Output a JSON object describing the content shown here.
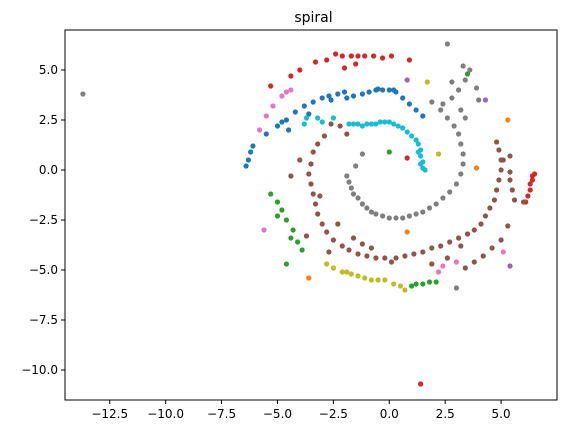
{
  "chart_data": {
    "type": "scatter",
    "title": "spiral",
    "xlabel": "",
    "ylabel": "",
    "xlim": [
      -14.5,
      7.5
    ],
    "ylim": [
      -11.5,
      7.0
    ],
    "xticks": [
      -12.5,
      -10.0,
      -7.5,
      -5.0,
      -2.5,
      0.0,
      2.5,
      5.0
    ],
    "xtick_labels": [
      "−12.5",
      "−10.0",
      "−7.5",
      "−5.0",
      "−2.5",
      "0.0",
      "2.5",
      "5.0"
    ],
    "yticks": [
      5.0,
      2.5,
      0.0,
      -2.5,
      -5.0,
      -7.5,
      -10.0
    ],
    "ytick_labels": [
      "5.0",
      "2.5",
      "0.0",
      "−2.5",
      "−5.0",
      "−7.5",
      "−10.0"
    ],
    "grid": false,
    "series": [
      {
        "color": "#1f77b4",
        "points": [
          [
            -6.4,
            0.2
          ],
          [
            -6.3,
            0.5
          ],
          [
            -6.2,
            0.9
          ],
          [
            -6.1,
            1.2
          ],
          [
            -5.5,
            1.8
          ],
          [
            -5.0,
            2.2
          ],
          [
            -4.6,
            2.5
          ],
          [
            -4.2,
            2.9
          ],
          [
            -3.8,
            3.2
          ],
          [
            -3.4,
            3.4
          ],
          [
            -3.0,
            3.6
          ],
          [
            -2.7,
            3.7
          ],
          [
            -2.3,
            3.8
          ],
          [
            -2.0,
            3.9
          ],
          [
            -1.6,
            3.7
          ],
          [
            -1.2,
            3.8
          ],
          [
            -0.9,
            3.9
          ],
          [
            -0.6,
            4.0
          ],
          [
            -0.3,
            4.0
          ],
          [
            0.0,
            4.0
          ],
          [
            0.3,
            3.9
          ],
          [
            0.6,
            3.6
          ],
          [
            0.9,
            3.3
          ],
          [
            1.2,
            3.0
          ],
          [
            1.5,
            2.7
          ],
          [
            -4.8,
            2.4
          ],
          [
            -3.6,
            2.8
          ],
          [
            -2.6,
            3.5
          ],
          [
            -1.9,
            3.6
          ],
          [
            -0.5,
            4.05
          ],
          [
            0.2,
            4.0
          ],
          [
            -4.5,
            2.0
          ]
        ]
      },
      {
        "color": "#ff7f0e",
        "points": [
          [
            5.3,
            2.5
          ],
          [
            3.9,
            0.1
          ],
          [
            0.8,
            -3.1
          ],
          [
            -3.6,
            -5.4
          ]
        ]
      },
      {
        "color": "#2ca02c",
        "points": [
          [
            -5.3,
            -1.2
          ],
          [
            -5.0,
            -1.6
          ],
          [
            -4.8,
            -2.0
          ],
          [
            -4.6,
            -2.5
          ],
          [
            -4.3,
            -3.0
          ],
          [
            -4.1,
            -3.6
          ],
          [
            -3.9,
            -4.0
          ],
          [
            -4.6,
            -4.7
          ],
          [
            -5.0,
            -2.3
          ],
          [
            1.2,
            -5.7
          ],
          [
            1.5,
            -5.7
          ],
          [
            1.8,
            -5.6
          ],
          [
            2.1,
            -5.6
          ],
          [
            1.0,
            -5.8
          ],
          [
            0.0,
            0.9
          ],
          [
            3.5,
            4.8
          ],
          [
            -4.4,
            -3.4
          ]
        ]
      },
      {
        "color": "#d62728",
        "points": [
          [
            -2.4,
            5.8
          ],
          [
            -2.1,
            5.7
          ],
          [
            -1.7,
            5.7
          ],
          [
            -1.4,
            5.7
          ],
          [
            -1.1,
            5.7
          ],
          [
            -0.7,
            5.7
          ],
          [
            -0.3,
            5.6
          ],
          [
            0.1,
            5.7
          ],
          [
            -2.8,
            5.5
          ],
          [
            -3.3,
            5.4
          ],
          [
            -4.0,
            5.0
          ],
          [
            -4.4,
            4.7
          ],
          [
            -5.3,
            4.2
          ],
          [
            -1.5,
            5.3
          ],
          [
            -2.0,
            5.1
          ],
          [
            6.4,
            -0.3
          ],
          [
            6.4,
            -0.5
          ],
          [
            6.3,
            -0.7
          ],
          [
            6.3,
            -1.0
          ],
          [
            6.2,
            -1.3
          ],
          [
            6.1,
            -1.6
          ],
          [
            6.5,
            -0.2
          ],
          [
            0.8,
            0.6
          ],
          [
            1.4,
            -10.7
          ],
          [
            0.9,
            5.5
          ]
        ]
      },
      {
        "color": "#9467bd",
        "points": [
          [
            0.8,
            4.5
          ],
          [
            4.3,
            3.5
          ],
          [
            5.4,
            -4.8
          ]
        ]
      },
      {
        "color": "#8c564b",
        "points": [
          [
            -1.9,
            1.8
          ],
          [
            -2.2,
            2.2
          ],
          [
            -2.6,
            2.3
          ],
          [
            -2.9,
            1.7
          ],
          [
            -3.2,
            1.3
          ],
          [
            -3.4,
            0.9
          ],
          [
            -3.5,
            0.3
          ],
          [
            -3.6,
            -0.2
          ],
          [
            -3.5,
            -0.7
          ],
          [
            -3.4,
            -1.2
          ],
          [
            -3.3,
            -1.7
          ],
          [
            -3.2,
            -2.2
          ],
          [
            -3.0,
            -2.7
          ],
          [
            -2.8,
            -3.1
          ],
          [
            -2.5,
            -3.5
          ],
          [
            -2.1,
            -3.8
          ],
          [
            -1.8,
            -4.0
          ],
          [
            -1.4,
            -4.2
          ],
          [
            -1.0,
            -4.3
          ],
          [
            -0.6,
            -4.4
          ],
          [
            -0.2,
            -4.4
          ],
          [
            0.3,
            -4.4
          ],
          [
            0.7,
            -4.3
          ],
          [
            1.1,
            -4.2
          ],
          [
            1.5,
            -4.1
          ],
          [
            1.9,
            -3.9
          ],
          [
            2.3,
            -3.8
          ],
          [
            2.7,
            -3.6
          ],
          [
            3.1,
            -3.4
          ],
          [
            3.5,
            -3.2
          ],
          [
            3.8,
            -3.0
          ],
          [
            4.1,
            -2.7
          ],
          [
            4.3,
            -2.3
          ],
          [
            4.5,
            -1.9
          ],
          [
            4.7,
            -1.5
          ],
          [
            4.8,
            -1.0
          ],
          [
            4.9,
            -0.5
          ],
          [
            5.0,
            0.0
          ],
          [
            5.0,
            0.5
          ],
          [
            4.9,
            1.0
          ],
          [
            4.8,
            1.4
          ],
          [
            5.1,
            0.5
          ],
          [
            5.4,
            0.7
          ],
          [
            5.4,
            -0.1
          ],
          [
            5.4,
            -0.5
          ],
          [
            5.5,
            -1.0
          ],
          [
            5.6,
            -1.5
          ],
          [
            6.0,
            -1.6
          ],
          [
            5.3,
            -2.8
          ],
          [
            5.0,
            -3.5
          ],
          [
            4.6,
            -3.9
          ],
          [
            4.2,
            -4.3
          ],
          [
            3.8,
            -4.6
          ],
          [
            3.4,
            -4.9
          ],
          [
            -1.6,
            -3.4
          ],
          [
            -1.2,
            -3.7
          ],
          [
            -0.8,
            -3.9
          ],
          [
            0.1,
            -4.6
          ],
          [
            -3.7,
            -3.3
          ],
          [
            -4.4,
            -0.3
          ],
          [
            -4.0,
            0.5
          ],
          [
            -3.1,
            -1.3
          ],
          [
            -2.7,
            -4.1
          ],
          [
            1.9,
            -4.7
          ],
          [
            2.6,
            -4.4
          ],
          [
            3.2,
            -3.8
          ],
          [
            -2.3,
            -2.7
          ]
        ]
      },
      {
        "color": "#e377c2",
        "points": [
          [
            -5.8,
            2.0
          ],
          [
            -5.5,
            2.7
          ],
          [
            -5.2,
            3.2
          ],
          [
            -4.8,
            3.7
          ],
          [
            -4.6,
            3.9
          ],
          [
            -4.4,
            4.0
          ],
          [
            2.2,
            -5.1
          ],
          [
            2.4,
            -4.8
          ],
          [
            3.0,
            -4.6
          ],
          [
            5.1,
            -4.1
          ],
          [
            -5.6,
            -3.0
          ]
        ]
      },
      {
        "color": "#7f7f7f",
        "points": [
          [
            -13.7,
            3.8
          ],
          [
            2.6,
            6.3
          ],
          [
            3.3,
            5.2
          ],
          [
            3.6,
            5.0
          ],
          [
            3.4,
            4.5
          ],
          [
            3.9,
            4.1
          ],
          [
            4.0,
            3.5
          ],
          [
            3.1,
            4.0
          ],
          [
            2.8,
            4.4
          ],
          [
            -1.9,
            -0.3
          ],
          [
            -1.8,
            -0.6
          ],
          [
            -1.7,
            -0.9
          ],
          [
            -1.6,
            -1.2
          ],
          [
            -1.4,
            -1.4
          ],
          [
            -1.2,
            -1.7
          ],
          [
            -1.0,
            -1.9
          ],
          [
            -0.8,
            -2.1
          ],
          [
            -0.6,
            -2.2
          ],
          [
            -0.3,
            -2.3
          ],
          [
            0.0,
            -2.4
          ],
          [
            0.3,
            -2.4
          ],
          [
            0.6,
            -2.4
          ],
          [
            0.9,
            -2.3
          ],
          [
            1.2,
            -2.2
          ],
          [
            1.5,
            -2.1
          ],
          [
            1.8,
            -1.9
          ],
          [
            2.1,
            -1.7
          ],
          [
            2.4,
            -1.4
          ],
          [
            2.7,
            -1.1
          ],
          [
            3.0,
            -0.7
          ],
          [
            3.2,
            -0.2
          ],
          [
            3.3,
            0.3
          ],
          [
            3.3,
            0.8
          ],
          [
            3.2,
            1.3
          ],
          [
            3.1,
            1.8
          ],
          [
            2.9,
            2.2
          ],
          [
            2.6,
            2.6
          ],
          [
            2.3,
            3.0
          ],
          [
            1.9,
            3.4
          ],
          [
            2.4,
            3.3
          ],
          [
            2.8,
            3.6
          ],
          [
            3.2,
            3.0
          ],
          [
            3.4,
            2.6
          ],
          [
            -1.5,
            0.2
          ],
          [
            -1.2,
            0.8
          ],
          [
            3.0,
            -5.9
          ]
        ]
      },
      {
        "color": "#bcbd22",
        "points": [
          [
            -2.8,
            -4.7
          ],
          [
            -2.5,
            -4.9
          ],
          [
            -2.1,
            -5.1
          ],
          [
            -1.7,
            -5.2
          ],
          [
            -1.4,
            -5.3
          ],
          [
            -1.1,
            -5.4
          ],
          [
            -0.8,
            -5.5
          ],
          [
            -0.5,
            -5.5
          ],
          [
            -0.2,
            -5.5
          ],
          [
            0.2,
            -5.7
          ],
          [
            0.5,
            -5.8
          ],
          [
            0.7,
            -6.0
          ],
          [
            2.2,
            0.8
          ],
          [
            1.7,
            4.4
          ],
          [
            -1.9,
            -5.1
          ]
        ]
      },
      {
        "color": "#17becf",
        "points": [
          [
            -1.8,
            2.3
          ],
          [
            -1.6,
            2.3
          ],
          [
            -1.4,
            2.3
          ],
          [
            -1.2,
            2.2
          ],
          [
            -1.0,
            2.3
          ],
          [
            -0.8,
            2.3
          ],
          [
            -0.6,
            2.3
          ],
          [
            -0.4,
            2.4
          ],
          [
            -0.2,
            2.4
          ],
          [
            0.0,
            2.4
          ],
          [
            0.2,
            2.3
          ],
          [
            0.4,
            2.2
          ],
          [
            0.6,
            2.1
          ],
          [
            0.8,
            1.9
          ],
          [
            1.0,
            1.7
          ],
          [
            1.2,
            1.5
          ],
          [
            1.3,
            1.3
          ],
          [
            1.4,
            1.0
          ],
          [
            1.4,
            0.7
          ],
          [
            1.5,
            0.4
          ],
          [
            1.5,
            0.1
          ],
          [
            1.6,
            0.0
          ],
          [
            1.4,
            0.3
          ],
          [
            1.3,
            0.9
          ],
          [
            -2.5,
            2.6
          ],
          [
            -3.0,
            2.4
          ],
          [
            -3.2,
            2.6
          ],
          [
            -3.7,
            2.6
          ],
          [
            -3.8,
            2.3
          ]
        ]
      }
    ]
  }
}
